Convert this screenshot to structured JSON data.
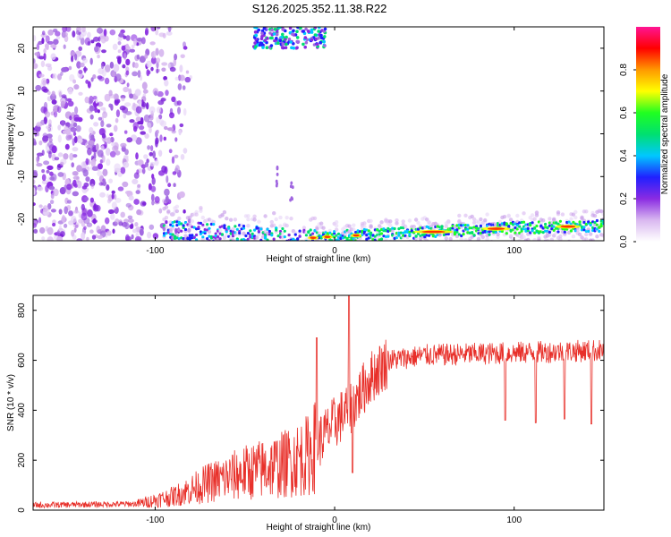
{
  "title": "S126.2025.352.11.38.R22",
  "chart_data": [
    {
      "type": "heatmap",
      "xlabel": "Height of straight line (km)",
      "ylabel": "Frequency (Hz)",
      "xlim": [
        -168,
        150
      ],
      "ylim": [
        -25,
        25
      ],
      "x_ticks": [
        -100,
        0,
        100
      ],
      "y_ticks": [
        -20,
        -10,
        0,
        10,
        20
      ],
      "colorbar": {
        "label": "Normalized spectral amplitude",
        "range": [
          0,
          1
        ],
        "ticks": [
          0.0,
          0.2,
          0.4,
          0.6,
          0.8
        ],
        "colors": [
          "#ffffff",
          "#d9b8f0",
          "#8a2be2",
          "#2020ff",
          "#00c8ff",
          "#00e070",
          "#20ff20",
          "#ffff00",
          "#ff9900",
          "#ff0000",
          "#ff1493"
        ]
      },
      "features": {
        "noise_region_x": [
          -168,
          -90
        ],
        "lower_band": [
          {
            "x": -85,
            "f": -22.5
          },
          {
            "x": -50,
            "f": -23.5
          },
          {
            "x": -20,
            "f": -24.5
          },
          {
            "x": 0,
            "f": -24.0
          },
          {
            "x": 50,
            "f": -23.0
          },
          {
            "x": 100,
            "f": -22.0
          },
          {
            "x": 150,
            "f": -21.5
          }
        ],
        "upper_patch": {
          "x": [
            -45,
            -5
          ],
          "f": [
            20,
            25
          ]
        }
      }
    },
    {
      "type": "line",
      "xlabel": "Height of straight line (km)",
      "ylabel": "SNR (10 * v/v)",
      "xlim": [
        -168,
        150
      ],
      "ylim": [
        0,
        860
      ],
      "x_ticks": [
        -100,
        0,
        100
      ],
      "y_ticks": [
        0,
        200,
        400,
        600,
        800
      ],
      "color": "#e8302a",
      "envelope": [
        {
          "x": -168,
          "y": 20
        },
        {
          "x": -110,
          "y": 25
        },
        {
          "x": -90,
          "y": 55
        },
        {
          "x": -70,
          "y": 110
        },
        {
          "x": -50,
          "y": 150
        },
        {
          "x": -30,
          "y": 180
        },
        {
          "x": -15,
          "y": 220
        },
        {
          "x": 0,
          "y": 350
        },
        {
          "x": 10,
          "y": 420
        },
        {
          "x": 20,
          "y": 530
        },
        {
          "x": 30,
          "y": 600
        },
        {
          "x": 50,
          "y": 620
        },
        {
          "x": 100,
          "y": 630
        },
        {
          "x": 150,
          "y": 640
        }
      ],
      "spikes": [
        {
          "x": 8,
          "y": 860
        },
        {
          "x": -10,
          "y": 690
        },
        {
          "x": 10,
          "y": 150
        },
        {
          "x": 95,
          "y": 360
        },
        {
          "x": 112,
          "y": 350
        },
        {
          "x": 128,
          "y": 365
        },
        {
          "x": 143,
          "y": 345
        }
      ]
    }
  ]
}
